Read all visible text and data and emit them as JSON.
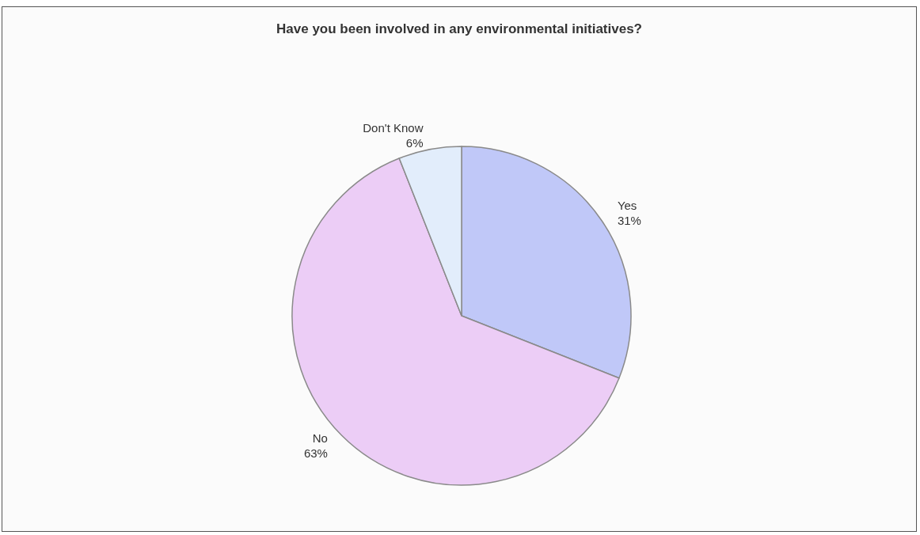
{
  "chart_data": {
    "type": "pie",
    "title": "Have you been involved in any environmental initiatives?",
    "categories": [
      "Yes",
      "No",
      "Don't Know"
    ],
    "values": [
      31,
      63,
      6
    ],
    "value_labels": [
      "31%",
      "63%",
      "6%"
    ],
    "colors": [
      "#c0c8f8",
      "#eccdf6",
      "#e2edfb"
    ],
    "legend": false
  }
}
